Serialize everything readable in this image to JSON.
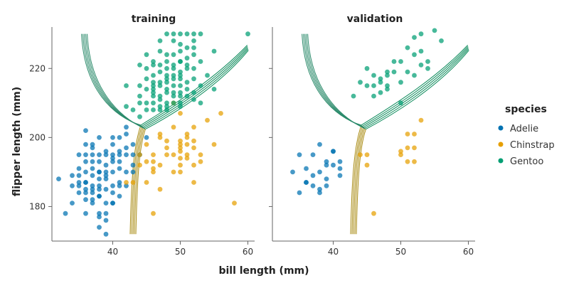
{
  "chart_data": {
    "type": "scatter",
    "facets": [
      "training",
      "validation"
    ],
    "xlabel": "bill length (mm)",
    "ylabel": "flipper length (mm)",
    "xlim": [
      31,
      61
    ],
    "ylim": [
      170,
      232
    ],
    "xticks": [
      40,
      50,
      60
    ],
    "yticks": [
      180,
      200,
      220
    ],
    "legend": {
      "title": "species",
      "entries": [
        "Adelie",
        "Chinstrap",
        "Gentoo"
      ],
      "placement": "right"
    },
    "colors": {
      "Adelie": "#0072b2",
      "Chinstrap": "#e69f00",
      "Gentoo": "#009e73",
      "contour_gentoo": "#0a8a5a",
      "contour_chinstrap": "#a88a10",
      "contour_adelie": "#2a8a6a"
    },
    "series": [
      {
        "name": "Adelie",
        "facet": "training",
        "points": [
          [
            32,
            188
          ],
          [
            33,
            178
          ],
          [
            35,
            184
          ],
          [
            35,
            195
          ],
          [
            36,
            187
          ],
          [
            37,
            186
          ],
          [
            37,
            182
          ],
          [
            38,
            183
          ],
          [
            38,
            177
          ],
          [
            39,
            172
          ],
          [
            38,
            174
          ],
          [
            40,
            181
          ],
          [
            35,
            191
          ],
          [
            36,
            198
          ],
          [
            37,
            193
          ],
          [
            34,
            186
          ],
          [
            36,
            202
          ],
          [
            38,
            195
          ],
          [
            39,
            190
          ],
          [
            40,
            186
          ],
          [
            41,
            186
          ],
          [
            37,
            198
          ],
          [
            38,
            190
          ],
          [
            39,
            196
          ],
          [
            40,
            194
          ],
          [
            39,
            185
          ],
          [
            41,
            191
          ],
          [
            36,
            184
          ],
          [
            37,
            191
          ],
          [
            35,
            186
          ],
          [
            38,
            188
          ],
          [
            36,
            190
          ],
          [
            40,
            195
          ],
          [
            39,
            181
          ],
          [
            42,
            195
          ],
          [
            42,
            197
          ],
          [
            41,
            193
          ],
          [
            42,
            190
          ],
          [
            43,
            190
          ],
          [
            44,
            195
          ],
          [
            45,
            200
          ],
          [
            38,
            200
          ],
          [
            39,
            192
          ],
          [
            40,
            193
          ],
          [
            37,
            195
          ],
          [
            38,
            183
          ],
          [
            40,
            181
          ],
          [
            41,
            187
          ],
          [
            43,
            195
          ],
          [
            42,
            201
          ],
          [
            36,
            195
          ],
          [
            35,
            187
          ],
          [
            37,
            181
          ],
          [
            38,
            185
          ],
          [
            36,
            182
          ],
          [
            41,
            200
          ],
          [
            40,
            198
          ],
          [
            37,
            197
          ],
          [
            38,
            193
          ],
          [
            39,
            188
          ],
          [
            34,
            181
          ],
          [
            36,
            193
          ],
          [
            40,
            190
          ],
          [
            43,
            198
          ],
          [
            41,
            183
          ],
          [
            39,
            189
          ],
          [
            37,
            189
          ],
          [
            36,
            187
          ],
          [
            35,
            189
          ],
          [
            38,
            178
          ],
          [
            39,
            178
          ],
          [
            41,
            195
          ],
          [
            42,
            203
          ],
          [
            40,
            200
          ],
          [
            37,
            185
          ],
          [
            38,
            190
          ],
          [
            39,
            195
          ],
          [
            36,
            185
          ],
          [
            34,
            189
          ],
          [
            41,
            196
          ],
          [
            40,
            184
          ],
          [
            43,
            192
          ],
          [
            42,
            186
          ],
          [
            37,
            184
          ],
          [
            38,
            186
          ],
          [
            39,
            176
          ],
          [
            36,
            178
          ]
        ]
      },
      {
        "name": "Chinstrap",
        "facet": "training",
        "points": [
          [
            46,
            178
          ],
          [
            58,
            181
          ],
          [
            50,
            196
          ],
          [
            52,
            187
          ],
          [
            53,
            193
          ],
          [
            51,
            200
          ],
          [
            49,
            195
          ],
          [
            46,
            190
          ],
          [
            47,
            192
          ],
          [
            48,
            195
          ],
          [
            45,
            187
          ],
          [
            44,
            195
          ],
          [
            47,
            201
          ],
          [
            50,
            198
          ],
          [
            51,
            201
          ],
          [
            52,
            203
          ],
          [
            49,
            210
          ],
          [
            50,
            207
          ],
          [
            46,
            193
          ],
          [
            45,
            193
          ],
          [
            43,
            187
          ],
          [
            42,
            187
          ],
          [
            46,
            191
          ],
          [
            47,
            185
          ],
          [
            48,
            199
          ],
          [
            51,
            194
          ],
          [
            50,
            192
          ],
          [
            49,
            203
          ],
          [
            52,
            197
          ],
          [
            51,
            195
          ],
          [
            54,
            205
          ],
          [
            56,
            207
          ],
          [
            50,
            190
          ],
          [
            46,
            195
          ],
          [
            52,
            192
          ],
          [
            50,
            199
          ],
          [
            51,
            198
          ],
          [
            45,
            198
          ],
          [
            44,
            192
          ],
          [
            48,
            197
          ],
          [
            49,
            190
          ],
          [
            47,
            200
          ],
          [
            50,
            197
          ],
          [
            52,
            199
          ],
          [
            53,
            195
          ],
          [
            55,
            198
          ],
          [
            50,
            194
          ]
        ]
      },
      {
        "name": "Gentoo",
        "facet": "training",
        "points": [
          [
            42,
            215
          ],
          [
            44,
            212
          ],
          [
            45,
            217
          ],
          [
            46,
            210
          ],
          [
            46,
            218
          ],
          [
            47,
            225
          ],
          [
            48,
            230
          ],
          [
            49,
            228
          ],
          [
            50,
            230
          ],
          [
            50,
            225
          ],
          [
            50,
            222
          ],
          [
            51,
            226
          ],
          [
            52,
            228
          ],
          [
            52,
            230
          ],
          [
            53,
            230
          ],
          [
            45,
            220
          ],
          [
            46,
            213
          ],
          [
            47,
            215
          ],
          [
            48,
            214
          ],
          [
            48,
            220
          ],
          [
            49,
            218
          ],
          [
            49,
            215
          ],
          [
            50,
            215
          ],
          [
            50,
            212
          ],
          [
            51,
            220
          ],
          [
            52,
            220
          ],
          [
            53,
            215
          ],
          [
            55,
            225
          ],
          [
            60,
            230
          ],
          [
            46,
            212
          ],
          [
            47,
            212
          ],
          [
            47,
            208
          ],
          [
            48,
            210
          ],
          [
            48,
            216
          ],
          [
            49,
            220
          ],
          [
            50,
            222
          ],
          [
            51,
            221
          ],
          [
            52,
            226
          ],
          [
            45,
            214
          ],
          [
            46,
            222
          ],
          [
            47,
            219
          ],
          [
            48,
            218
          ],
          [
            49,
            221
          ],
          [
            49,
            212
          ],
          [
            50,
            217
          ],
          [
            50,
            209
          ],
          [
            51,
            214
          ],
          [
            52,
            213
          ],
          [
            53,
            222
          ],
          [
            54,
            218
          ],
          [
            55,
            214
          ],
          [
            44,
            206
          ],
          [
            45,
            210
          ],
          [
            46,
            208
          ],
          [
            47,
            211
          ],
          [
            48,
            208
          ],
          [
            48,
            213
          ],
          [
            49,
            217
          ],
          [
            50,
            213
          ],
          [
            51,
            216
          ],
          [
            52,
            217
          ],
          [
            53,
            210
          ],
          [
            47,
            228
          ],
          [
            48,
            222
          ],
          [
            49,
            224
          ],
          [
            50,
            227
          ],
          [
            51,
            223
          ],
          [
            52,
            224
          ],
          [
            50,
            218
          ],
          [
            48,
            224
          ],
          [
            46,
            215
          ],
          [
            44,
            221
          ],
          [
            45,
            224
          ],
          [
            46,
            221
          ],
          [
            47,
            221
          ],
          [
            49,
            230
          ],
          [
            51,
            230
          ],
          [
            44,
            210
          ],
          [
            43,
            208
          ],
          [
            42,
            209
          ],
          [
            44,
            215
          ],
          [
            45,
            208
          ],
          [
            46,
            214
          ],
          [
            47,
            209
          ],
          [
            48,
            209
          ],
          [
            49,
            210
          ],
          [
            50,
            210
          ],
          [
            51,
            212
          ],
          [
            50,
            219
          ],
          [
            49,
            213
          ],
          [
            52,
            211
          ],
          [
            47,
            216
          ],
          [
            48,
            217
          ],
          [
            46,
            216
          ]
        ]
      },
      {
        "name": "Adelie",
        "facet": "validation",
        "points": [
          [
            34,
            190
          ],
          [
            35,
            184
          ],
          [
            36,
            187
          ],
          [
            36,
            191
          ],
          [
            35,
            195
          ],
          [
            37,
            195
          ],
          [
            38,
            198
          ],
          [
            39,
            192
          ],
          [
            39,
            193
          ],
          [
            40,
            192
          ],
          [
            40,
            196
          ],
          [
            41,
            193
          ],
          [
            41,
            191
          ],
          [
            39,
            188
          ],
          [
            38,
            185
          ],
          [
            37,
            186
          ],
          [
            38,
            190
          ],
          [
            39,
            186
          ],
          [
            40,
            196
          ],
          [
            38,
            184
          ],
          [
            37,
            189
          ],
          [
            36,
            187
          ],
          [
            41,
            189
          ]
        ]
      },
      {
        "name": "Chinstrap",
        "facet": "validation",
        "points": [
          [
            45,
            192
          ],
          [
            46,
            178
          ],
          [
            50,
            195
          ],
          [
            50,
            196
          ],
          [
            51,
            193
          ],
          [
            52,
            193
          ],
          [
            51,
            201
          ],
          [
            52,
            201
          ],
          [
            53,
            205
          ],
          [
            52,
            197
          ],
          [
            51,
            197
          ],
          [
            45,
            195
          ],
          [
            44,
            195
          ]
        ]
      },
      {
        "name": "Gentoo",
        "facet": "validation",
        "points": [
          [
            43,
            212
          ],
          [
            44,
            216
          ],
          [
            45,
            220
          ],
          [
            46,
            215
          ],
          [
            46,
            218
          ],
          [
            47,
            217
          ],
          [
            47,
            213
          ],
          [
            48,
            215
          ],
          [
            48,
            219
          ],
          [
            49,
            219
          ],
          [
            50,
            216
          ],
          [
            50,
            222
          ],
          [
            51,
            226
          ],
          [
            52,
            229
          ],
          [
            53,
            225
          ],
          [
            53,
            230
          ],
          [
            55,
            231
          ],
          [
            56,
            228
          ],
          [
            54,
            222
          ],
          [
            50,
            210
          ],
          [
            46,
            212
          ],
          [
            45,
            215
          ],
          [
            47,
            216
          ],
          [
            48,
            214
          ],
          [
            49,
            222
          ],
          [
            51,
            219
          ],
          [
            52,
            224
          ],
          [
            53,
            221
          ],
          [
            48,
            218
          ],
          [
            54,
            220
          ],
          [
            52,
            218
          ]
        ]
      }
    ]
  }
}
